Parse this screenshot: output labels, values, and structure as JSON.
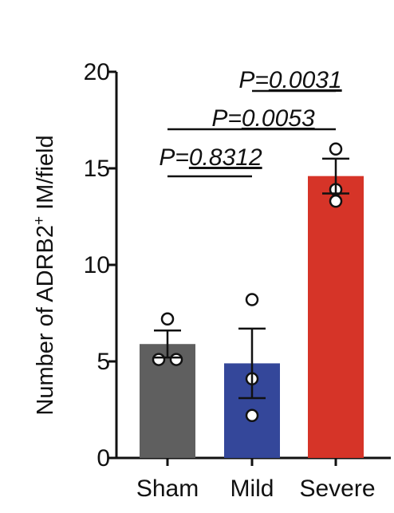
{
  "chart_data": {
    "type": "bar",
    "categories": [
      "Sham",
      "Mild",
      "Severe"
    ],
    "values": [
      5.9,
      4.9,
      14.6
    ],
    "error": [
      0.7,
      1.8,
      0.9
    ],
    "points": [
      [
        7.2,
        5.1,
        5.1
      ],
      [
        8.2,
        4.1,
        2.2
      ],
      [
        16.0,
        13.9,
        13.3
      ]
    ],
    "colors": [
      "#5f5f5f",
      "#34479a",
      "#d63428"
    ],
    "ylabel_main": "Number of ADRB2",
    "ylabel_sup": "+",
    "ylabel_tail": " IM/field",
    "ylim": [
      0,
      20
    ],
    "yticks": [
      "0",
      "5",
      "10",
      "15",
      "20"
    ],
    "ytick_values": [
      0,
      5,
      10,
      15,
      20
    ],
    "comparisons": [
      {
        "from": 0,
        "to": 1,
        "label_prefix": "P=",
        "label_value": "0.8312"
      },
      {
        "from": 0,
        "to": 2,
        "label_prefix": "P=",
        "label_value": "0.0053"
      },
      {
        "from": 1,
        "to": 2,
        "label_prefix": "P=",
        "label_value": "0.0031"
      }
    ]
  }
}
